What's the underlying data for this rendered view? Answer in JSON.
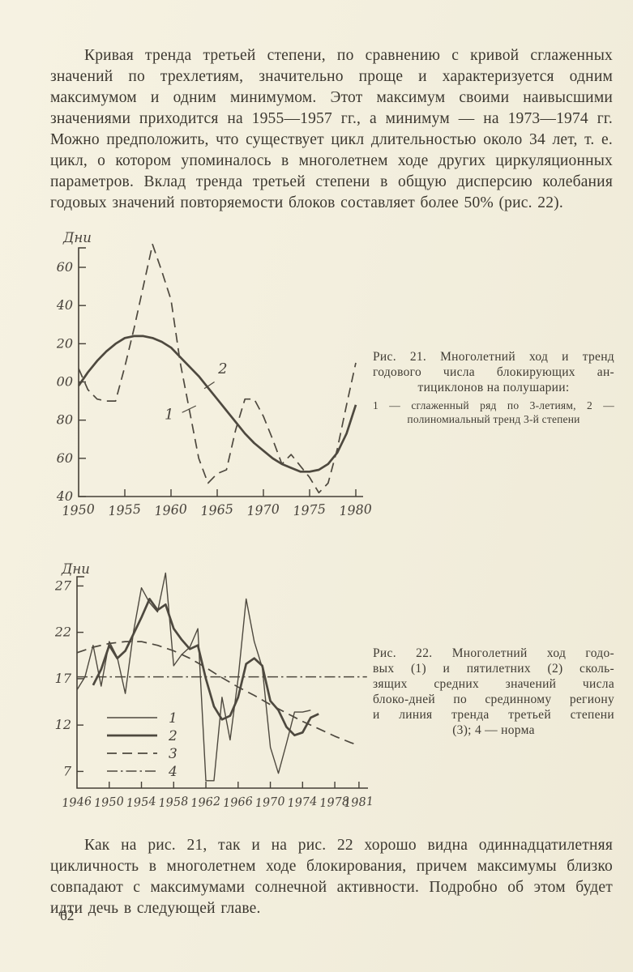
{
  "page": {
    "number": "62",
    "paper_color": "#f3efde",
    "ink_color": "#3c3830",
    "stroke_color": "#4e493f"
  },
  "text": {
    "p1": "Кривая тренда третьей степени, по сравнению с кривой сглаженных значений по трехлетиям, значительно проще и характеризуется одним максимумом и одним минимумом. Этот максимум своими наивысшими значениями приходится на 1955—1957 гг., а минимум — на 1973—1974 гг. Можно предположить, что существует цикл длительностью около 34 лет, т. е. цикл, о котором упоминалось в многолетнем ходе других циркуляционных параметров. Вклад тренда третьей степени в общую дисперсию колебания годовых значений повторяемости блоков составляет более 50% (рис. 22).",
    "p2": "Как на рис. 21, так и на рис. 22 хорошо видна одиннадцатилетняя цикличность в многолетнем ходе блокирования, причем максимумы близко совпадают с максимумами солнечной активности. Подробно об этом будет идти дечь в следующей главе."
  },
  "figure21": {
    "caption_lines": [
      "Рис. 21. Многолетний ход и тренд",
      "годового числа блокирующих ан-",
      "тициклонов на полушарии:"
    ],
    "note_lines": [
      "1 — сглаженный ряд по 3-летиям, 2 —",
      "полиномиальный тренд 3-й степени"
    ]
  },
  "figure22": {
    "caption_lines": [
      "Рис. 22.  Многолетний ход годо-",
      "вых (1) и пятилетних (2) сколь-",
      "зящих средних значений числа",
      "блоко-дней по срединному региону",
      "и линия тренда третьей степени",
      "(3); 4 — норма"
    ]
  },
  "chart_data": [
    {
      "type": "line",
      "title": "Рис. 21. Многолетний ход и тренд годового числа блокирующих антициклонов на полушарии",
      "ylabel": "Дни",
      "xlabel": "",
      "xlim": [
        1950,
        1981
      ],
      "ylim": [
        40,
        175
      ],
      "yticks": [
        40,
        60,
        80,
        100,
        120,
        140,
        160
      ],
      "xticks": [
        1950,
        1955,
        1960,
        1965,
        1970,
        1975,
        1980
      ],
      "grid": false,
      "legend_position": "none",
      "series": [
        {
          "name": "1 — сглаженный ряд по 3-летиям",
          "style": "dashed",
          "x": [
            1950,
            1951,
            1952,
            1953,
            1954,
            1955,
            1956,
            1957,
            1958,
            1959,
            1960,
            1961,
            1962,
            1963,
            1964,
            1965,
            1966,
            1967,
            1968,
            1969,
            1970,
            1971,
            1972,
            1973,
            1974,
            1975,
            1976,
            1977,
            1978,
            1979,
            1980
          ],
          "values": [
            107,
            96,
            91,
            90,
            90,
            108,
            128,
            150,
            172,
            158,
            143,
            110,
            85,
            60,
            47,
            52,
            54,
            75,
            91,
            91,
            82,
            70,
            57,
            62,
            56,
            50,
            42,
            47,
            65,
            88,
            110
          ]
        },
        {
          "name": "2 — полиномиальный тренд 3-й степени",
          "style": "solid-thick",
          "x": [
            1950,
            1951,
            1952,
            1953,
            1954,
            1955,
            1956,
            1957,
            1958,
            1959,
            1960,
            1961,
            1962,
            1963,
            1964,
            1965,
            1966,
            1967,
            1968,
            1969,
            1970,
            1971,
            1972,
            1973,
            1974,
            1975,
            1976,
            1977,
            1978,
            1979,
            1980
          ],
          "values": [
            98,
            105,
            111,
            116,
            120,
            123,
            124,
            124,
            123,
            121,
            118,
            113,
            108,
            103,
            97,
            91,
            85,
            79,
            73,
            68,
            64,
            60,
            57,
            55,
            53,
            53,
            54,
            57,
            63,
            73,
            88
          ]
        }
      ],
      "annotations": [
        {
          "text": "1",
          "tx": 1959.8,
          "ty": 80.5,
          "x1": 1961.2,
          "y1": 84,
          "x2": 1962.7,
          "y2": 87.5
        },
        {
          "text": "2",
          "tx": 1965.6,
          "ty": 104.5,
          "x1": 1964.7,
          "y1": 100,
          "x2": 1963.6,
          "y2": 96.5
        }
      ]
    },
    {
      "type": "line",
      "title": "Рис. 22. Многолетний ход годовых и пятилетних скользящих средних значений числа блоко-дней по срединному региону",
      "ylabel": "Дни",
      "xlabel": "",
      "xlim": [
        1946,
        1982
      ],
      "ylim": [
        5.2,
        28.5
      ],
      "yticks": [
        7,
        12,
        17,
        22,
        27
      ],
      "xticks": [
        1946,
        1950,
        1954,
        1958,
        1962,
        1966,
        1970,
        1974,
        1978,
        1981
      ],
      "grid": false,
      "legend_position": "lower-left",
      "legend_labels": [
        "1",
        "2",
        "3",
        "4"
      ],
      "series": [
        {
          "name": "1 — годовые значения",
          "style": "solid-thin",
          "x": [
            1946,
            1947,
            1948,
            1949,
            1950,
            1951,
            1952,
            1953,
            1954,
            1955,
            1956,
            1957,
            1958,
            1959,
            1960,
            1961,
            1962,
            1963,
            1964,
            1965,
            1966,
            1967,
            1968,
            1969,
            1970,
            1971,
            1972,
            1973,
            1974,
            1975
          ],
          "values": [
            15.8,
            17.2,
            20.6,
            16.2,
            21.0,
            19.3,
            15.4,
            22.0,
            26.8,
            25.2,
            24.2,
            28.4,
            18.4,
            19.6,
            20.4,
            22.4,
            6.0,
            6.0,
            15.0,
            10.4,
            17.0,
            25.6,
            21.0,
            18.2,
            9.6,
            6.8,
            10.0,
            13.4,
            13.4,
            13.6
          ]
        },
        {
          "name": "2 — пятилетние скользящие средние",
          "style": "solid-thick",
          "x": [
            1948,
            1949,
            1950,
            1951,
            1952,
            1953,
            1954,
            1955,
            1956,
            1957,
            1958,
            1959,
            1960,
            1961,
            1962,
            1963,
            1964,
            1965,
            1966,
            1967,
            1968,
            1969,
            1970,
            1971,
            1972,
            1973,
            1974,
            1975,
            1976
          ],
          "values": [
            16.3,
            18.0,
            20.6,
            19.2,
            20.0,
            21.8,
            23.6,
            25.6,
            24.4,
            25.0,
            22.4,
            21.2,
            20.2,
            20.6,
            17.0,
            14.0,
            12.6,
            13.0,
            15.0,
            18.6,
            19.2,
            18.4,
            14.6,
            13.6,
            11.8,
            10.9,
            11.2,
            12.8,
            13.2
          ]
        },
        {
          "name": "3 — тренд третьей степени",
          "style": "dashed",
          "x": [
            1946,
            1948,
            1950,
            1952,
            1954,
            1956,
            1958,
            1960,
            1962,
            1964,
            1966,
            1968,
            1970,
            1972,
            1974,
            1976,
            1978,
            1980,
            1981
          ],
          "values": [
            19.8,
            20.4,
            20.8,
            21.0,
            21.0,
            20.6,
            20.0,
            19.2,
            18.2,
            17.1,
            16.1,
            15.2,
            14.2,
            13.3,
            12.4,
            11.6,
            10.8,
            10.1,
            9.8
          ]
        },
        {
          "name": "4 — норма",
          "style": "dashdot",
          "x": [
            1946,
            1982
          ],
          "values": [
            17.2,
            17.2
          ]
        }
      ],
      "annotations": []
    }
  ]
}
